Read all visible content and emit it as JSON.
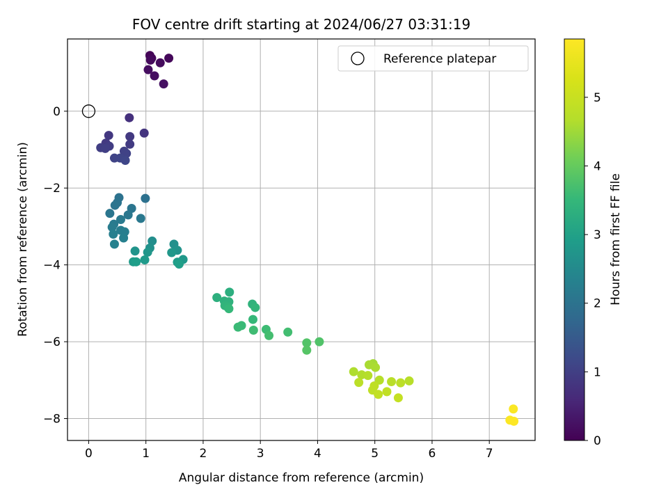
{
  "chart_data": {
    "type": "scatter",
    "title": "FOV centre drift starting at 2024/06/27 03:31:19",
    "xlabel": "Angular distance from reference (arcmin)",
    "ylabel": "Rotation from reference (arcmin)",
    "xlim": [
      -0.37,
      7.8
    ],
    "ylim": [
      -8.57,
      1.88
    ],
    "xticks": [
      0,
      1,
      2,
      3,
      4,
      5,
      6,
      7
    ],
    "xtick_labels": [
      "0",
      "1",
      "2",
      "3",
      "4",
      "5",
      "6",
      "7"
    ],
    "yticks": [
      0,
      -2,
      -4,
      -6,
      -8
    ],
    "ytick_labels": [
      "0",
      "−2",
      "−4",
      "−6",
      "−8"
    ],
    "grid": true,
    "legend": {
      "placement": "top-right",
      "entries": [
        "Reference platepar"
      ]
    },
    "reference_point": {
      "name": "Reference platepar",
      "x": 0,
      "y": 0
    },
    "colorbar": {
      "label": "Hours from first FF file",
      "range": [
        0,
        5.85
      ],
      "ticks": [
        0,
        1,
        2,
        3,
        4,
        5
      ],
      "tick_labels": [
        "0",
        "1",
        "2",
        "3",
        "4",
        "5"
      ],
      "colormap": "viridis"
    },
    "points": [
      {
        "x": 1.07,
        "y": 1.45,
        "c": 0.05
      },
      {
        "x": 1.1,
        "y": 1.38,
        "c": 0.08
      },
      {
        "x": 1.4,
        "y": 1.38,
        "c": 0.1
      },
      {
        "x": 1.08,
        "y": 1.33,
        "c": 0.13
      },
      {
        "x": 1.25,
        "y": 1.26,
        "c": 0.15
      },
      {
        "x": 1.04,
        "y": 1.08,
        "c": 0.18
      },
      {
        "x": 1.15,
        "y": 0.92,
        "c": 0.2
      },
      {
        "x": 1.31,
        "y": 0.71,
        "c": 0.22
      },
      {
        "x": 0.71,
        "y": -0.17,
        "c": 0.75
      },
      {
        "x": 0.97,
        "y": -0.57,
        "c": 0.8
      },
      {
        "x": 0.35,
        "y": -0.63,
        "c": 0.85
      },
      {
        "x": 0.72,
        "y": -0.66,
        "c": 0.88
      },
      {
        "x": 0.3,
        "y": -0.83,
        "c": 0.9
      },
      {
        "x": 0.72,
        "y": -0.86,
        "c": 0.92
      },
      {
        "x": 0.36,
        "y": -0.91,
        "c": 0.95
      },
      {
        "x": 0.21,
        "y": -0.95,
        "c": 0.97
      },
      {
        "x": 0.29,
        "y": -0.97,
        "c": 1.0
      },
      {
        "x": 0.62,
        "y": -1.04,
        "c": 1.02
      },
      {
        "x": 0.66,
        "y": -1.1,
        "c": 1.05
      },
      {
        "x": 0.45,
        "y": -1.22,
        "c": 1.08
      },
      {
        "x": 0.55,
        "y": -1.22,
        "c": 1.1
      },
      {
        "x": 0.64,
        "y": -1.28,
        "c": 1.12
      },
      {
        "x": 0.99,
        "y": -2.27,
        "c": 1.95
      },
      {
        "x": 0.53,
        "y": -2.25,
        "c": 1.97
      },
      {
        "x": 0.5,
        "y": -2.38,
        "c": 2.0
      },
      {
        "x": 0.46,
        "y": -2.45,
        "c": 2.02
      },
      {
        "x": 0.75,
        "y": -2.53,
        "c": 2.05
      },
      {
        "x": 0.37,
        "y": -2.66,
        "c": 2.07
      },
      {
        "x": 0.69,
        "y": -2.7,
        "c": 2.1
      },
      {
        "x": 0.91,
        "y": -2.79,
        "c": 2.12
      },
      {
        "x": 0.56,
        "y": -2.82,
        "c": 2.15
      },
      {
        "x": 0.44,
        "y": -2.94,
        "c": 2.17
      },
      {
        "x": 0.41,
        "y": -3.02,
        "c": 2.2
      },
      {
        "x": 0.56,
        "y": -3.1,
        "c": 2.22
      },
      {
        "x": 0.63,
        "y": -3.14,
        "c": 2.25
      },
      {
        "x": 0.43,
        "y": -3.2,
        "c": 2.27
      },
      {
        "x": 0.61,
        "y": -3.3,
        "c": 2.3
      },
      {
        "x": 0.45,
        "y": -3.46,
        "c": 2.32
      },
      {
        "x": 1.11,
        "y": -3.38,
        "c": 2.6
      },
      {
        "x": 1.49,
        "y": -3.46,
        "c": 2.63
      },
      {
        "x": 1.07,
        "y": -3.56,
        "c": 2.66
      },
      {
        "x": 1.55,
        "y": -3.62,
        "c": 2.69
      },
      {
        "x": 0.81,
        "y": -3.64,
        "c": 2.72
      },
      {
        "x": 1.03,
        "y": -3.67,
        "c": 2.75
      },
      {
        "x": 1.45,
        "y": -3.68,
        "c": 2.78
      },
      {
        "x": 1.65,
        "y": -3.86,
        "c": 2.81
      },
      {
        "x": 0.98,
        "y": -3.87,
        "c": 2.84
      },
      {
        "x": 0.78,
        "y": -3.92,
        "c": 2.87
      },
      {
        "x": 1.55,
        "y": -3.93,
        "c": 2.9
      },
      {
        "x": 0.83,
        "y": -3.92,
        "c": 2.93
      },
      {
        "x": 1.58,
        "y": -3.98,
        "c": 2.96
      },
      {
        "x": 2.46,
        "y": -4.71,
        "c": 3.3
      },
      {
        "x": 2.24,
        "y": -4.85,
        "c": 3.32
      },
      {
        "x": 2.37,
        "y": -4.94,
        "c": 3.35
      },
      {
        "x": 2.45,
        "y": -4.96,
        "c": 3.37
      },
      {
        "x": 2.86,
        "y": -5.02,
        "c": 3.4
      },
      {
        "x": 2.38,
        "y": -5.06,
        "c": 3.42
      },
      {
        "x": 2.43,
        "y": -5.1,
        "c": 3.45
      },
      {
        "x": 2.91,
        "y": -5.11,
        "c": 3.47
      },
      {
        "x": 2.45,
        "y": -5.14,
        "c": 3.5
      },
      {
        "x": 2.87,
        "y": -5.42,
        "c": 3.52
      },
      {
        "x": 2.67,
        "y": -5.58,
        "c": 3.55
      },
      {
        "x": 2.61,
        "y": -5.62,
        "c": 3.57
      },
      {
        "x": 3.1,
        "y": -5.68,
        "c": 3.6
      },
      {
        "x": 2.88,
        "y": -5.7,
        "c": 3.62
      },
      {
        "x": 3.48,
        "y": -5.75,
        "c": 3.65
      },
      {
        "x": 3.15,
        "y": -5.84,
        "c": 3.67
      },
      {
        "x": 4.03,
        "y": -6.0,
        "c": 3.8
      },
      {
        "x": 3.81,
        "y": -6.03,
        "c": 3.82
      },
      {
        "x": 3.81,
        "y": -6.22,
        "c": 3.85
      },
      {
        "x": 4.97,
        "y": -6.57,
        "c": 4.55
      },
      {
        "x": 4.9,
        "y": -6.6,
        "c": 4.58
      },
      {
        "x": 5.01,
        "y": -6.67,
        "c": 4.6
      },
      {
        "x": 4.63,
        "y": -6.78,
        "c": 4.63
      },
      {
        "x": 4.77,
        "y": -6.86,
        "c": 4.65
      },
      {
        "x": 4.88,
        "y": -6.88,
        "c": 4.68
      },
      {
        "x": 5.08,
        "y": -7.0,
        "c": 4.7
      },
      {
        "x": 5.6,
        "y": -7.02,
        "c": 4.73
      },
      {
        "x": 5.29,
        "y": -7.04,
        "c": 4.75
      },
      {
        "x": 4.72,
        "y": -7.06,
        "c": 4.78
      },
      {
        "x": 5.45,
        "y": -7.07,
        "c": 4.8
      },
      {
        "x": 4.99,
        "y": -7.15,
        "c": 4.83
      },
      {
        "x": 4.96,
        "y": -7.26,
        "c": 4.85
      },
      {
        "x": 5.21,
        "y": -7.3,
        "c": 4.88
      },
      {
        "x": 5.06,
        "y": -7.37,
        "c": 4.9
      },
      {
        "x": 5.41,
        "y": -7.46,
        "c": 4.93
      },
      {
        "x": 7.42,
        "y": -7.75,
        "c": 5.8
      },
      {
        "x": 7.36,
        "y": -8.04,
        "c": 5.82
      },
      {
        "x": 7.43,
        "y": -8.07,
        "c": 5.85
      }
    ]
  }
}
